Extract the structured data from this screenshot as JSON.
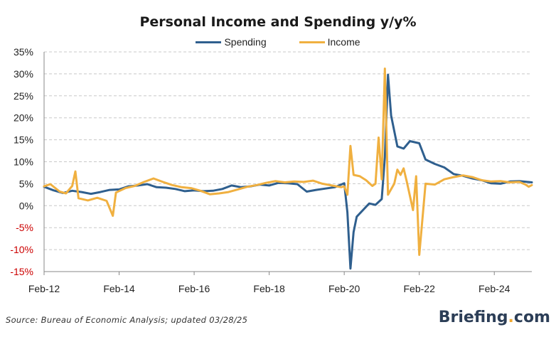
{
  "chart_data": {
    "type": "line",
    "title": "Personal Income and Spending y/y%",
    "xlabel": "",
    "ylabel": "",
    "ylim": [
      -15,
      35
    ],
    "yticks": [
      {
        "value": 35,
        "label": "35%"
      },
      {
        "value": 30,
        "label": "30%"
      },
      {
        "value": 25,
        "label": "25%"
      },
      {
        "value": 20,
        "label": "20%"
      },
      {
        "value": 15,
        "label": "15%"
      },
      {
        "value": 10,
        "label": "10%"
      },
      {
        "value": 5,
        "label": "5%"
      },
      {
        "value": 0,
        "label": "0%"
      },
      {
        "value": -5,
        "label": "-5%"
      },
      {
        "value": -10,
        "label": "-10%"
      },
      {
        "value": -15,
        "label": "-15%"
      }
    ],
    "xlim": [
      "2012-02",
      "2025-02"
    ],
    "xticks": [
      {
        "value": "2012-02",
        "label": "Feb-12"
      },
      {
        "value": "2014-02",
        "label": "Feb-14"
      },
      {
        "value": "2016-02",
        "label": "Feb-16"
      },
      {
        "value": "2018-02",
        "label": "Feb-18"
      },
      {
        "value": "2020-02",
        "label": "Feb-20"
      },
      {
        "value": "2022-02",
        "label": "Feb-22"
      },
      {
        "value": "2024-02",
        "label": "Feb-24"
      }
    ],
    "grid": "horizontal dashed",
    "legend_position": "top-center",
    "negative_tick_color": "#cc0000",
    "series": [
      {
        "name": "Spending",
        "color": "#2f5f8e",
        "points": [
          [
            "2012-02",
            4.3
          ],
          [
            "2012-05",
            3.5
          ],
          [
            "2012-08",
            2.9
          ],
          [
            "2012-11",
            3.4
          ],
          [
            "2013-02",
            3.1
          ],
          [
            "2013-05",
            2.7
          ],
          [
            "2013-08",
            3.1
          ],
          [
            "2013-11",
            3.6
          ],
          [
            "2014-02",
            3.7
          ],
          [
            "2014-05",
            4.4
          ],
          [
            "2014-08",
            4.6
          ],
          [
            "2014-11",
            4.9
          ],
          [
            "2015-02",
            4.2
          ],
          [
            "2015-05",
            4.1
          ],
          [
            "2015-08",
            3.8
          ],
          [
            "2015-11",
            3.3
          ],
          [
            "2016-02",
            3.5
          ],
          [
            "2016-05",
            3.3
          ],
          [
            "2016-08",
            3.4
          ],
          [
            "2016-11",
            3.8
          ],
          [
            "2017-02",
            4.6
          ],
          [
            "2017-05",
            4.2
          ],
          [
            "2017-08",
            4.4
          ],
          [
            "2017-11",
            4.8
          ],
          [
            "2018-02",
            4.6
          ],
          [
            "2018-05",
            5.2
          ],
          [
            "2018-08",
            5.1
          ],
          [
            "2018-11",
            4.9
          ],
          [
            "2019-02",
            3.2
          ],
          [
            "2019-05",
            3.6
          ],
          [
            "2019-08",
            3.9
          ],
          [
            "2019-11",
            4.2
          ],
          [
            "2020-02",
            5.1
          ],
          [
            "2020-03",
            -1.5
          ],
          [
            "2020-04",
            -14.3
          ],
          [
            "2020-05",
            -6.0
          ],
          [
            "2020-06",
            -2.5
          ],
          [
            "2020-08",
            -1.0
          ],
          [
            "2020-10",
            0.5
          ],
          [
            "2020-12",
            0.2
          ],
          [
            "2021-02",
            1.5
          ],
          [
            "2021-03",
            11.0
          ],
          [
            "2021-04",
            29.8
          ],
          [
            "2021-05",
            20.5
          ],
          [
            "2021-07",
            13.5
          ],
          [
            "2021-09",
            13.0
          ],
          [
            "2021-11",
            14.7
          ],
          [
            "2022-02",
            14.2
          ],
          [
            "2022-04",
            10.5
          ],
          [
            "2022-07",
            9.5
          ],
          [
            "2022-10",
            8.7
          ],
          [
            "2023-01",
            7.2
          ],
          [
            "2023-04",
            6.8
          ],
          [
            "2023-07",
            6.2
          ],
          [
            "2023-10",
            5.8
          ],
          [
            "2024-01",
            5.1
          ],
          [
            "2024-04",
            5.0
          ],
          [
            "2024-07",
            5.5
          ],
          [
            "2024-10",
            5.6
          ],
          [
            "2025-02",
            5.3
          ]
        ]
      },
      {
        "name": "Income",
        "color": "#f0b040",
        "points": [
          [
            "2012-02",
            4.4
          ],
          [
            "2012-04",
            4.9
          ],
          [
            "2012-07",
            3.2
          ],
          [
            "2012-09",
            2.8
          ],
          [
            "2012-11",
            4.5
          ],
          [
            "2012-12",
            7.8
          ],
          [
            "2013-01",
            1.7
          ],
          [
            "2013-04",
            1.2
          ],
          [
            "2013-07",
            1.8
          ],
          [
            "2013-10",
            1.1
          ],
          [
            "2013-12",
            -2.3
          ],
          [
            "2014-01",
            3.0
          ],
          [
            "2014-04",
            4.0
          ],
          [
            "2014-07",
            4.5
          ],
          [
            "2014-10",
            5.4
          ],
          [
            "2015-01",
            6.2
          ],
          [
            "2015-04",
            5.4
          ],
          [
            "2015-07",
            4.7
          ],
          [
            "2015-10",
            4.2
          ],
          [
            "2016-01",
            4.0
          ],
          [
            "2016-04",
            3.4
          ],
          [
            "2016-07",
            2.6
          ],
          [
            "2016-10",
            2.8
          ],
          [
            "2017-01",
            3.1
          ],
          [
            "2017-04",
            3.7
          ],
          [
            "2017-07",
            4.3
          ],
          [
            "2017-10",
            4.7
          ],
          [
            "2018-01",
            5.2
          ],
          [
            "2018-04",
            5.6
          ],
          [
            "2018-07",
            5.3
          ],
          [
            "2018-10",
            5.5
          ],
          [
            "2019-01",
            5.4
          ],
          [
            "2019-04",
            5.7
          ],
          [
            "2019-07",
            5.0
          ],
          [
            "2019-10",
            4.6
          ],
          [
            "2020-01",
            4.2
          ],
          [
            "2020-02",
            4.4
          ],
          [
            "2020-03",
            2.5
          ],
          [
            "2020-04",
            13.6
          ],
          [
            "2020-05",
            7.0
          ],
          [
            "2020-07",
            6.7
          ],
          [
            "2020-09",
            5.8
          ],
          [
            "2020-11",
            4.5
          ],
          [
            "2020-12",
            5.0
          ],
          [
            "2021-01",
            15.5
          ],
          [
            "2021-02",
            6.0
          ],
          [
            "2021-03",
            31.2
          ],
          [
            "2021-04",
            2.5
          ],
          [
            "2021-06",
            5.0
          ],
          [
            "2021-07",
            8.2
          ],
          [
            "2021-08",
            7.0
          ],
          [
            "2021-09",
            8.5
          ],
          [
            "2021-10",
            5.5
          ],
          [
            "2021-12",
            -1.0
          ],
          [
            "2022-01",
            6.7
          ],
          [
            "2022-02",
            -11.2
          ],
          [
            "2022-04",
            5.0
          ],
          [
            "2022-07",
            4.8
          ],
          [
            "2022-10",
            6.0
          ],
          [
            "2023-01",
            6.5
          ],
          [
            "2023-04",
            6.9
          ],
          [
            "2023-07",
            6.5
          ],
          [
            "2023-10",
            5.8
          ],
          [
            "2024-01",
            5.5
          ],
          [
            "2024-04",
            5.6
          ],
          [
            "2024-07",
            5.3
          ],
          [
            "2024-10",
            5.4
          ],
          [
            "2024-12",
            4.8
          ],
          [
            "2025-01",
            4.3
          ],
          [
            "2025-02",
            4.7
          ]
        ]
      }
    ]
  },
  "footer": {
    "source": "Source: Bureau of Economic Analysis; updated 03/28/25",
    "brand_main": "Briefing",
    "brand_dot": ".",
    "brand_tld": "com"
  }
}
